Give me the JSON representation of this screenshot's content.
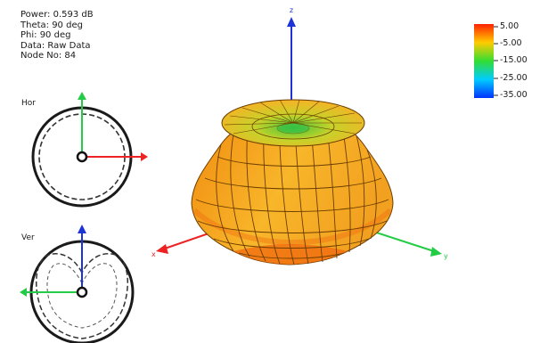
{
  "readout": {
    "power": "Power: 0.593 dB",
    "theta": "Theta: 90 deg",
    "phi": "Phi: 90 deg",
    "data": "Data: Raw Data",
    "node": "Node No: 84"
  },
  "cuts": {
    "horizontal_label": "Hor",
    "vertical_label": "Ver"
  },
  "axes": {
    "x": "x",
    "y": "y",
    "z": "z"
  },
  "color_scale": {
    "labels": [
      "5.00",
      "-5.00",
      "-15.00",
      "-25.00",
      "-35.00"
    ],
    "colors": [
      "#ff2200",
      "#ffcc00",
      "#33dd33",
      "#00ccff",
      "#0033ff"
    ]
  },
  "colors": {
    "axis_x": "#ee2222",
    "axis_y": "#22cc44",
    "axis_z": "#1d33d6",
    "pattern_fill": "#f2a020"
  }
}
